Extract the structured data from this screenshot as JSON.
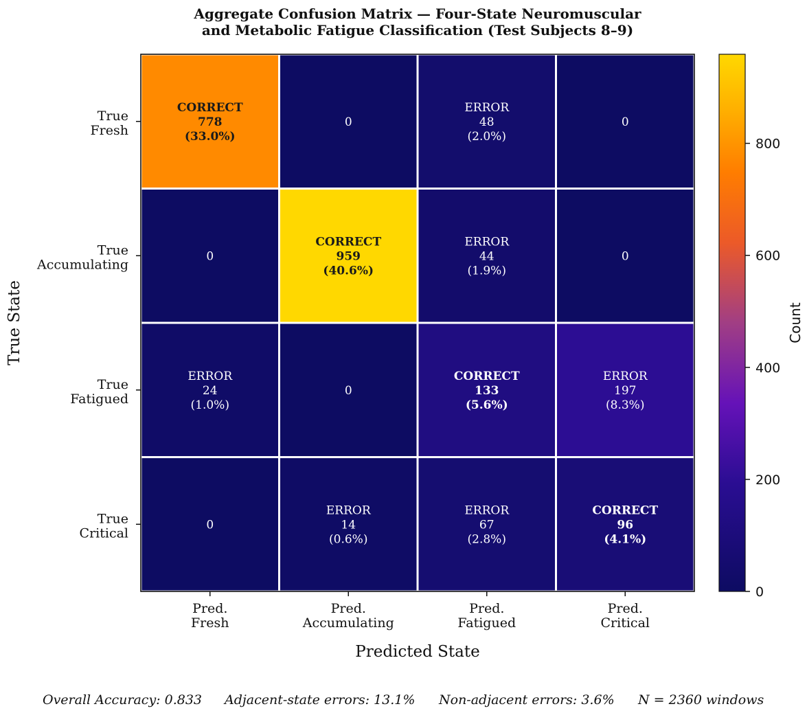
{
  "chart_data": {
    "type": "heatmap",
    "title_line1": "Aggregate Confusion Matrix — Four-State Neuromuscular",
    "title_line2": "and Metabolic Fatigue Classification (Test Subjects 8–9)",
    "xlabel": "Predicted State",
    "ylabel": "True State",
    "x_categories": [
      [
        "Pred.",
        "Fresh"
      ],
      [
        "Pred.",
        "Accumulating"
      ],
      [
        "Pred.",
        "Fatigued"
      ],
      [
        "Pred.",
        "Critical"
      ]
    ],
    "y_categories": [
      [
        "True",
        "Fresh"
      ],
      [
        "True",
        "Accumulating"
      ],
      [
        "True",
        "Fatigued"
      ],
      [
        "True",
        "Critical"
      ]
    ],
    "values": [
      [
        778,
        0,
        48,
        0
      ],
      [
        0,
        959,
        44,
        0
      ],
      [
        24,
        0,
        133,
        197
      ],
      [
        0,
        14,
        67,
        96
      ]
    ],
    "percent_labels": [
      [
        "(33.0%)",
        "",
        "(2.0%)",
        ""
      ],
      [
        "",
        "(40.6%)",
        "(1.9%)",
        ""
      ],
      [
        "(1.0%)",
        "",
        "(5.6%)",
        "(8.3%)"
      ],
      [
        "",
        "(0.6%)",
        "(2.8%)",
        "(4.1%)"
      ]
    ],
    "correct_label": "CORRECT",
    "error_label": "ERROR",
    "colormap": "plasma-like (dark navy → purple → orange → gold)",
    "colorbar": {
      "label": "Count",
      "range": [
        0,
        959
      ],
      "ticks": [
        "0",
        "200",
        "400",
        "600",
        "800"
      ],
      "tick_values": [
        0,
        200,
        400,
        600,
        800
      ]
    },
    "grid_color": "#ffffff"
  },
  "footer": {
    "accuracy": "Overall Accuracy: 0.833",
    "adjacent": "Adjacent-state errors: 13.1%",
    "nonadjacent": "Non-adjacent errors: 3.6%",
    "n": "N = 2360 windows"
  }
}
